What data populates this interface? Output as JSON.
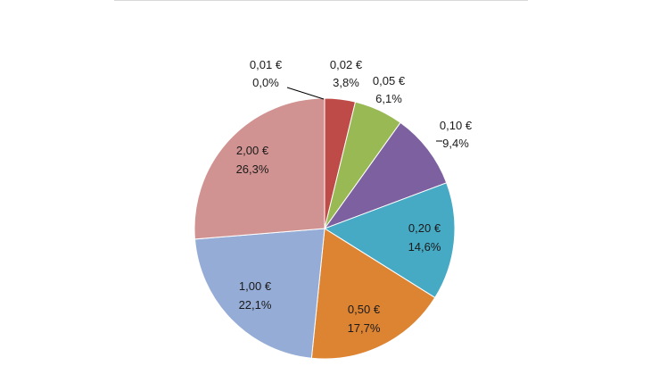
{
  "chart_data": {
    "type": "pie",
    "title": "",
    "slices": [
      {
        "label": "0,01 €",
        "percent_label": "0,0%",
        "value": 0.0,
        "color": "#4a7ebb"
      },
      {
        "label": "0,02 €",
        "percent_label": "3,8%",
        "value": 3.8,
        "color": "#be4b48"
      },
      {
        "label": "0,05 €",
        "percent_label": "6,1%",
        "value": 6.1,
        "color": "#98b954"
      },
      {
        "label": "0,10 €",
        "percent_label": "9,4%",
        "value": 9.4,
        "color": "#7d60a0"
      },
      {
        "label": "0,20 €",
        "percent_label": "14,6%",
        "value": 14.6,
        "color": "#46aac5"
      },
      {
        "label": "0,50 €",
        "percent_label": "17,7%",
        "value": 17.7,
        "color": "#dd8433"
      },
      {
        "label": "1,00 €",
        "percent_label": "22,1%",
        "value": 22.1,
        "color": "#95acd6"
      },
      {
        "label": "2,00 €",
        "percent_label": "26,3%",
        "value": 26.3,
        "color": "#d19392"
      }
    ]
  }
}
